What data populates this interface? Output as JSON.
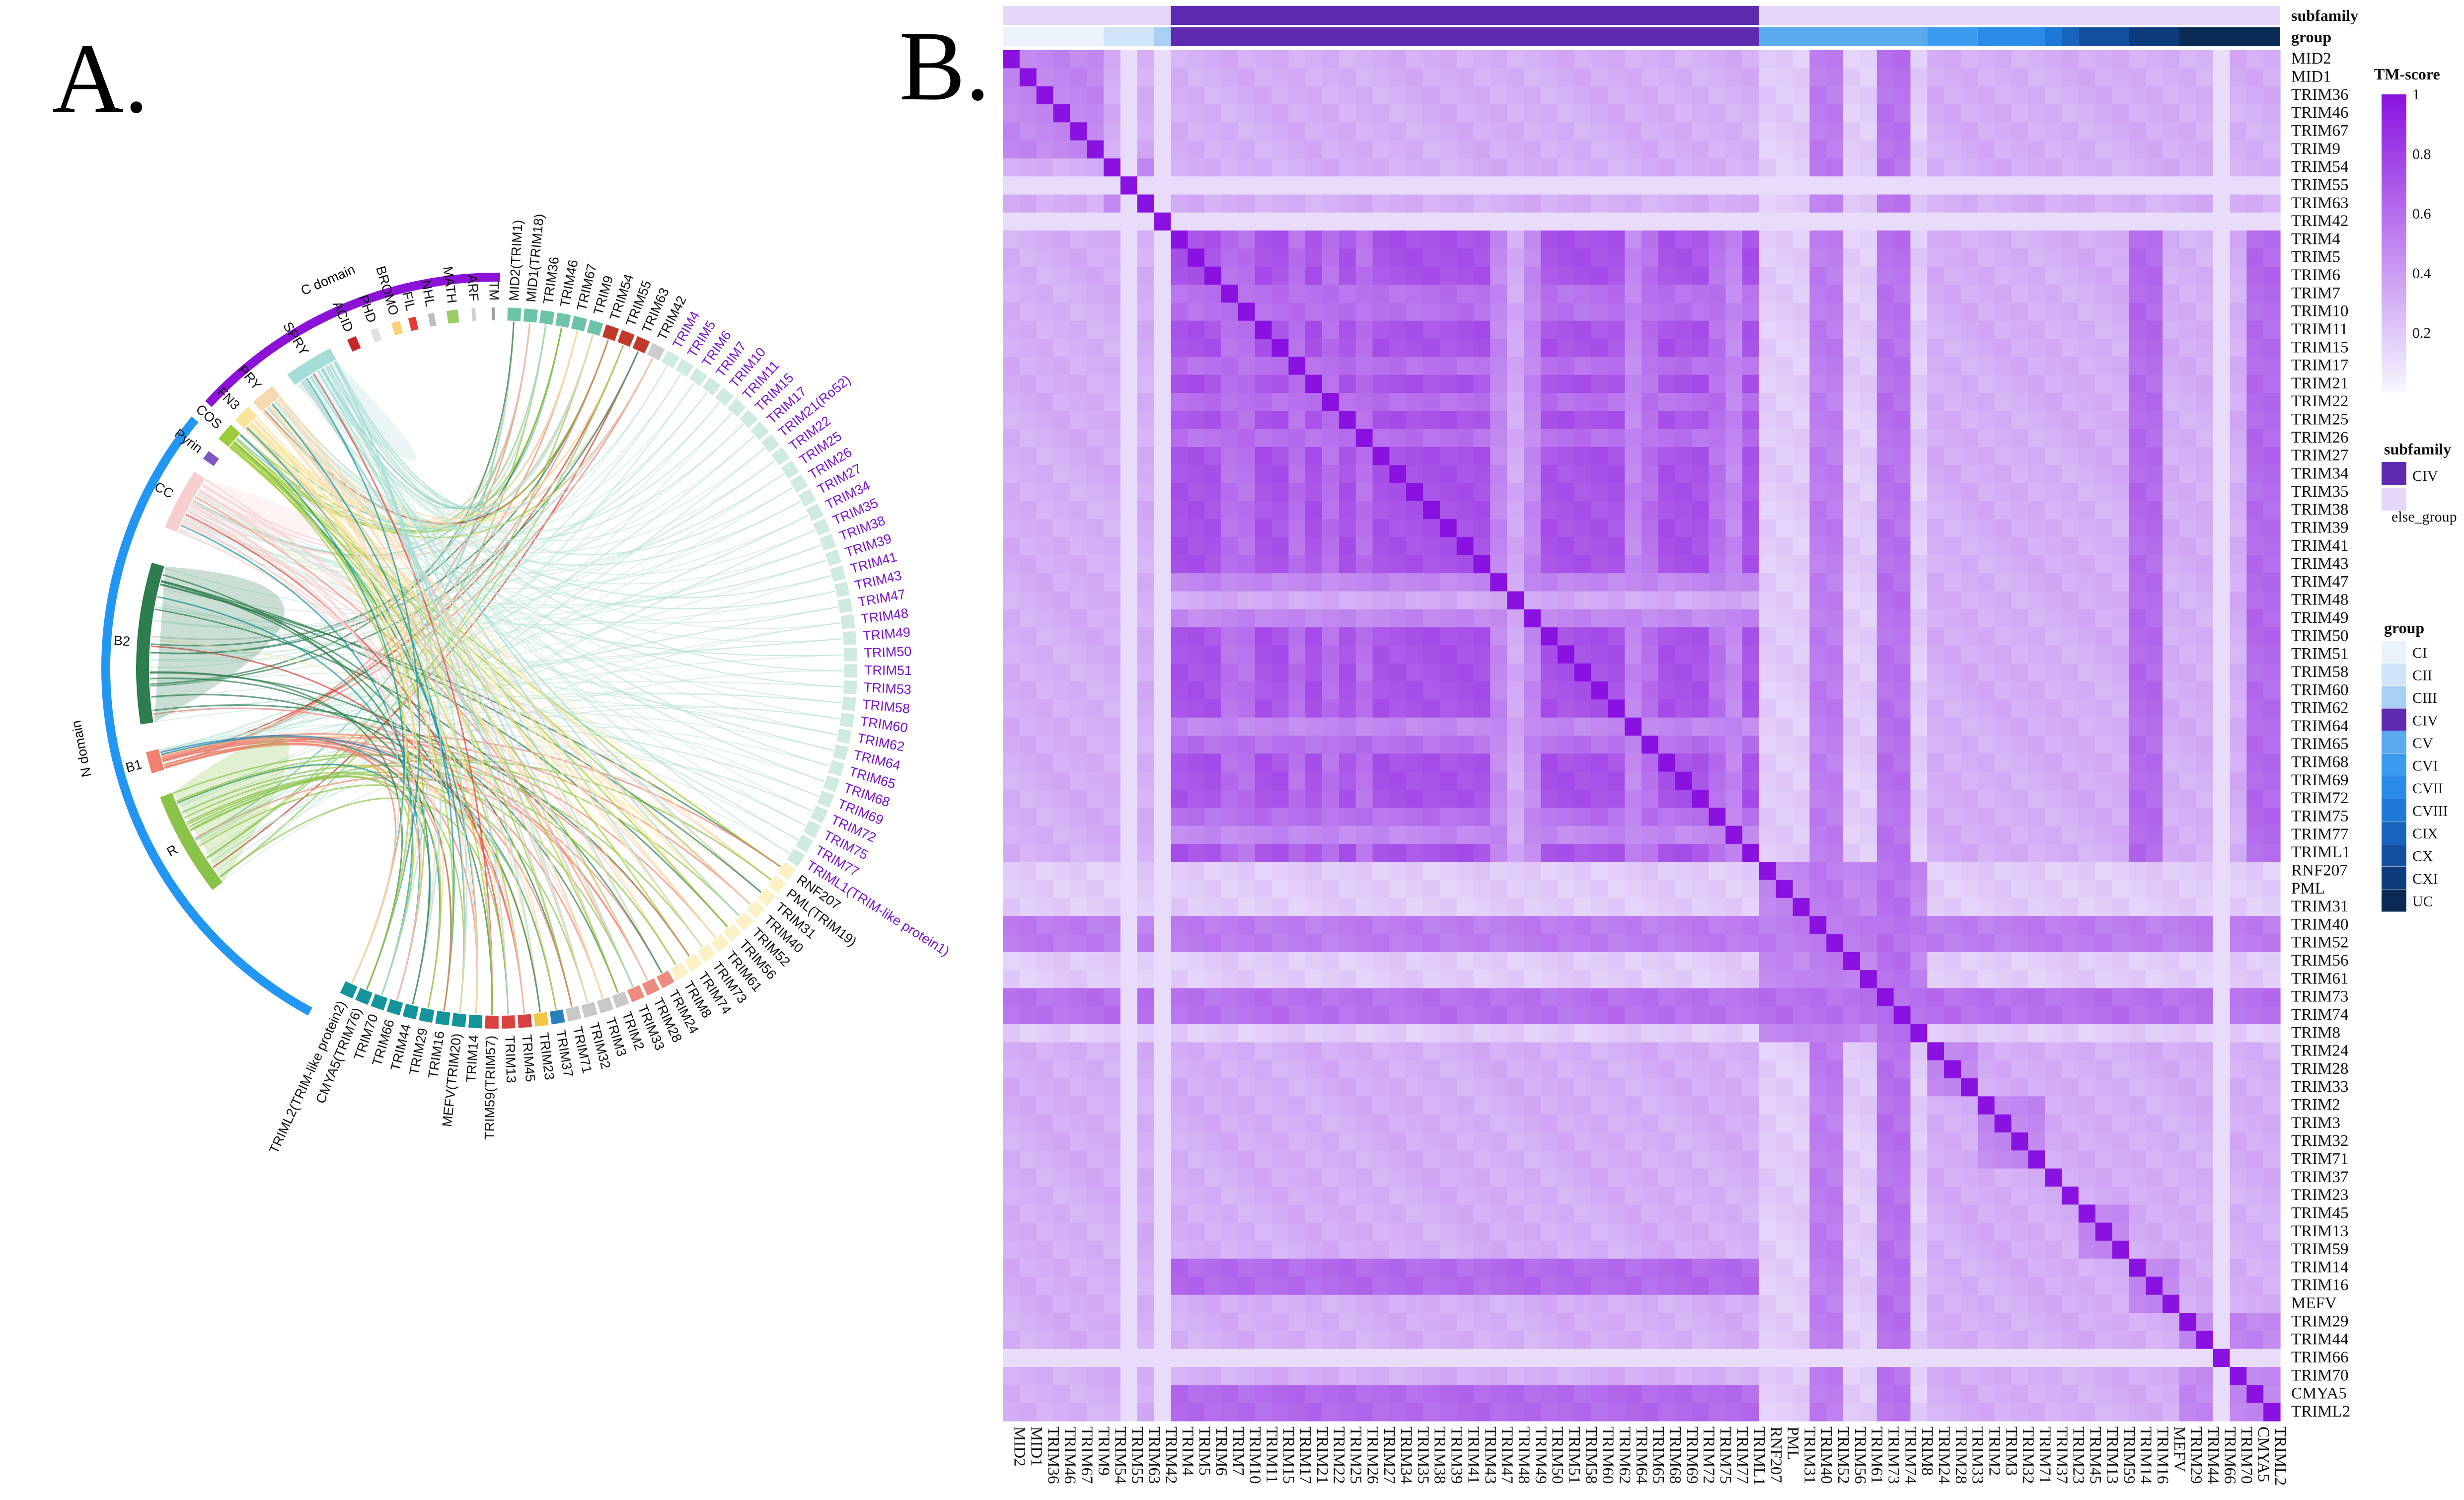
{
  "panels": {
    "a_label": "A.",
    "b_label": "B."
  },
  "chart_data": [
    {
      "type": "chord",
      "title": "",
      "super_groups": [
        {
          "name": "C domain",
          "color": "#8d12d8"
        },
        {
          "name": "N domain",
          "color": "#2196f3"
        }
      ],
      "domains": [
        {
          "name": "TM",
          "color": "#9e9e9e",
          "super": "C domain"
        },
        {
          "name": "ARF",
          "color": "#cfcfcf",
          "super": "C domain"
        },
        {
          "name": "MATH",
          "color": "#9ccc65",
          "super": "C domain"
        },
        {
          "name": "NHL",
          "color": "#bdbdbd",
          "super": "C domain"
        },
        {
          "name": "FIL",
          "color": "#e53935",
          "super": "C domain"
        },
        {
          "name": "BROMO",
          "color": "#f9d27a",
          "super": "C domain"
        },
        {
          "name": "PHD",
          "color": "#e0e0e0",
          "super": "C domain"
        },
        {
          "name": "ACID",
          "color": "#c62828",
          "super": "C domain"
        },
        {
          "name": "SPRY",
          "color": "#a6dcd7",
          "super": "C domain"
        },
        {
          "name": "PRY",
          "color": "#f6d9b0",
          "super": "C domain"
        },
        {
          "name": "FN3",
          "color": "#f7e39a",
          "super": "C domain"
        },
        {
          "name": "COS",
          "color": "#9ccc3a",
          "super": "C domain"
        },
        {
          "name": "Pyrin",
          "color": "#7e57c2",
          "super": "N domain"
        },
        {
          "name": "CC",
          "color": "#f8cfcf",
          "super": "N domain"
        },
        {
          "name": "B2",
          "color": "#2e7d4f",
          "super": "N domain"
        },
        {
          "name": "B1",
          "color": "#f08070",
          "super": "N domain"
        },
        {
          "name": "R",
          "color": "#8bc34a",
          "super": "N domain"
        }
      ],
      "proteins": [
        {
          "name": "MID2(TRIM1)",
          "color": "#6cc3a8",
          "group": "other"
        },
        {
          "name": "MID1(TRIM18)",
          "color": "#6cc3a8",
          "group": "other"
        },
        {
          "name": "TRIM36",
          "color": "#6cc3a8",
          "group": "other"
        },
        {
          "name": "TRIM46",
          "color": "#6cc3a8",
          "group": "other"
        },
        {
          "name": "TRIM67",
          "color": "#6cc3a8",
          "group": "other"
        },
        {
          "name": "TRIM9",
          "color": "#6cc3a8",
          "group": "other"
        },
        {
          "name": "TRIM54",
          "color": "#c0392b",
          "group": "other"
        },
        {
          "name": "TRIM55",
          "color": "#c0392b",
          "group": "other"
        },
        {
          "name": "TRIM63",
          "color": "#c0392b",
          "group": "other"
        },
        {
          "name": "TRIM42",
          "color": "#cccccc",
          "group": "other"
        },
        {
          "name": "TRIM4",
          "color": "#cfeae0",
          "group": "CIV"
        },
        {
          "name": "TRIM5",
          "color": "#cfeae0",
          "group": "CIV"
        },
        {
          "name": "TRIM6",
          "color": "#cfeae0",
          "group": "CIV"
        },
        {
          "name": "TRIM7",
          "color": "#cfeae0",
          "group": "CIV"
        },
        {
          "name": "TRIM10",
          "color": "#cfeae0",
          "group": "CIV"
        },
        {
          "name": "TRIM11",
          "color": "#cfeae0",
          "group": "CIV"
        },
        {
          "name": "TRIM15",
          "color": "#cfeae0",
          "group": "CIV"
        },
        {
          "name": "TRIM17",
          "color": "#cfeae0",
          "group": "CIV"
        },
        {
          "name": "TRIM21(Ro52)",
          "color": "#cfeae0",
          "group": "CIV"
        },
        {
          "name": "TRIM22",
          "color": "#cfeae0",
          "group": "CIV"
        },
        {
          "name": "TRIM25",
          "color": "#cfeae0",
          "group": "CIV"
        },
        {
          "name": "TRIM26",
          "color": "#cfeae0",
          "group": "CIV"
        },
        {
          "name": "TRIM27",
          "color": "#cfeae0",
          "group": "CIV"
        },
        {
          "name": "TRIM34",
          "color": "#cfeae0",
          "group": "CIV"
        },
        {
          "name": "TRIM35",
          "color": "#cfeae0",
          "group": "CIV"
        },
        {
          "name": "TRIM38",
          "color": "#cfeae0",
          "group": "CIV"
        },
        {
          "name": "TRIM39",
          "color": "#cfeae0",
          "group": "CIV"
        },
        {
          "name": "TRIM41",
          "color": "#cfeae0",
          "group": "CIV"
        },
        {
          "name": "TRIM43",
          "color": "#cfeae0",
          "group": "CIV"
        },
        {
          "name": "TRIM47",
          "color": "#cfeae0",
          "group": "CIV"
        },
        {
          "name": "TRIM48",
          "color": "#cfeae0",
          "group": "CIV"
        },
        {
          "name": "TRIM49",
          "color": "#cfeae0",
          "group": "CIV"
        },
        {
          "name": "TRIM50",
          "color": "#cfeae0",
          "group": "CIV"
        },
        {
          "name": "TRIM51",
          "color": "#cfeae0",
          "group": "CIV"
        },
        {
          "name": "TRIM53",
          "color": "#cfeae0",
          "group": "CIV"
        },
        {
          "name": "TRIM58",
          "color": "#cfeae0",
          "group": "CIV"
        },
        {
          "name": "TRIM60",
          "color": "#cfeae0",
          "group": "CIV"
        },
        {
          "name": "TRIM62",
          "color": "#cfeae0",
          "group": "CIV"
        },
        {
          "name": "TRIM64",
          "color": "#cfeae0",
          "group": "CIV"
        },
        {
          "name": "TRIM65",
          "color": "#cfeae0",
          "group": "CIV"
        },
        {
          "name": "TRIM68",
          "color": "#cfeae0",
          "group": "CIV"
        },
        {
          "name": "TRIM69",
          "color": "#cfeae0",
          "group": "CIV"
        },
        {
          "name": "TRIM72",
          "color": "#cfeae0",
          "group": "CIV"
        },
        {
          "name": "TRIM75",
          "color": "#cfeae0",
          "group": "CIV"
        },
        {
          "name": "TRIM77",
          "color": "#cfeae0",
          "group": "CIV"
        },
        {
          "name": "TRIML1(TRIM-like protein1)",
          "color": "#cfeae0",
          "group": "CIV"
        },
        {
          "name": "RNF207",
          "color": "#fbf1c4",
          "group": "other"
        },
        {
          "name": "PML(TRIM19)",
          "color": "#fbf1c4",
          "group": "other"
        },
        {
          "name": "TRIM31",
          "color": "#fbf1c4",
          "group": "other"
        },
        {
          "name": "TRIM40",
          "color": "#fbf1c4",
          "group": "other"
        },
        {
          "name": "TRIM52",
          "color": "#fbf1c4",
          "group": "other"
        },
        {
          "name": "TRIM56",
          "color": "#fbf1c4",
          "group": "other"
        },
        {
          "name": "TRIM61",
          "color": "#fbf1c4",
          "group": "other"
        },
        {
          "name": "TRIM73",
          "color": "#fbf1c4",
          "group": "other"
        },
        {
          "name": "TRIM74",
          "color": "#fbf1c4",
          "group": "other"
        },
        {
          "name": "TRIM8",
          "color": "#fbf1c4",
          "group": "other"
        },
        {
          "name": "TRIM24",
          "color": "#ef8a80",
          "group": "other"
        },
        {
          "name": "TRIM28",
          "color": "#ef8a80",
          "group": "other"
        },
        {
          "name": "TRIM33",
          "color": "#ef8a80",
          "group": "other"
        },
        {
          "name": "TRIM2",
          "color": "#c8c8c8",
          "group": "other"
        },
        {
          "name": "TRIM3",
          "color": "#c8c8c8",
          "group": "other"
        },
        {
          "name": "TRIM32",
          "color": "#c8c8c8",
          "group": "other"
        },
        {
          "name": "TRIM71",
          "color": "#c8c8c8",
          "group": "other"
        },
        {
          "name": "TRIM37",
          "color": "#2a7fbf",
          "group": "other"
        },
        {
          "name": "TRIM23",
          "color": "#f2c744",
          "group": "other"
        },
        {
          "name": "TRIM45",
          "color": "#d94040",
          "group": "other"
        },
        {
          "name": "TRIM13",
          "color": "#d94040",
          "group": "other"
        },
        {
          "name": "TRIM59(TRIM57)",
          "color": "#d94040",
          "group": "other"
        },
        {
          "name": "TRIM14",
          "color": "#13949b",
          "group": "other"
        },
        {
          "name": "MEFV(TRIM20)",
          "color": "#13949b",
          "group": "other"
        },
        {
          "name": "TRIM16",
          "color": "#13949b",
          "group": "other"
        },
        {
          "name": "TRIM29",
          "color": "#13949b",
          "group": "other"
        },
        {
          "name": "TRIM44",
          "color": "#13949b",
          "group": "other"
        },
        {
          "name": "TRIM66",
          "color": "#13949b",
          "group": "other"
        },
        {
          "name": "TRIM70",
          "color": "#13949b",
          "group": "other"
        },
        {
          "name": "CMYA5(TRIM76)",
          "color": "#13949b",
          "group": "other"
        },
        {
          "name": "TRIML2(TRIM-like protein2)",
          "color": "#13949b",
          "group": "other"
        }
      ]
    },
    {
      "type": "heatmap",
      "title": "",
      "value_name": "TM-score",
      "value_range": [
        0,
        1
      ],
      "colorbar_ticks": [
        "1",
        "0.8",
        "0.6",
        "0.4",
        "0.2"
      ],
      "row_labels": [
        "MID2",
        "MID1",
        "TRIM36",
        "TRIM46",
        "TRIM67",
        "TRIM9",
        "TRIM54",
        "TRIM55",
        "TRIM63",
        "TRIM42",
        "TRIM4",
        "TRIM5",
        "TRIM6",
        "TRIM7",
        "TRIM10",
        "TRIM11",
        "TRIM15",
        "TRIM17",
        "TRIM21",
        "TRIM22",
        "TRIM25",
        "TRIM26",
        "TRIM27",
        "TRIM34",
        "TRIM35",
        "TRIM38",
        "TRIM39",
        "TRIM41",
        "TRIM43",
        "TRIM47",
        "TRIM48",
        "TRIM49",
        "TRIM50",
        "TRIM51",
        "TRIM58",
        "TRIM60",
        "TRIM62",
        "TRIM64",
        "TRIM65",
        "TRIM68",
        "TRIM69",
        "TRIM72",
        "TRIM75",
        "TRIM77",
        "TRIML1",
        "RNF207",
        "PML",
        "TRIM31",
        "TRIM40",
        "TRIM52",
        "TRIM56",
        "TRIM61",
        "TRIM73",
        "TRIM74",
        "TRIM8",
        "TRIM24",
        "TRIM28",
        "TRIM33",
        "TRIM2",
        "TRIM3",
        "TRIM32",
        "TRIM71",
        "TRIM37",
        "TRIM23",
        "TRIM45",
        "TRIM13",
        "TRIM59",
        "TRIM14",
        "TRIM16",
        "MEFV",
        "TRIM29",
        "TRIM44",
        "TRIM66",
        "TRIM70",
        "CMYA5",
        "TRIML2"
      ],
      "col_labels": [
        "MID2",
        "MID1",
        "TRIM36",
        "TRIM46",
        "TRIM67",
        "TRIM9",
        "TRIM54",
        "TRIM55",
        "TRIM63",
        "TRIM42",
        "TRIM4",
        "TRIM5",
        "TRIM6",
        "TRIM7",
        "TRIM10",
        "TRIM11",
        "TRIM15",
        "TRIM17",
        "TRIM21",
        "TRIM22",
        "TRIM25",
        "TRIM26",
        "TRIM27",
        "TRIM34",
        "TRIM35",
        "TRIM38",
        "TRIM39",
        "TRIM41",
        "TRIM43",
        "TRIM47",
        "TRIM48",
        "TRIM49",
        "TRIM50",
        "TRIM51",
        "TRIM58",
        "TRIM60",
        "TRIM62",
        "TRIM64",
        "TRIM65",
        "TRIM68",
        "TRIM69",
        "TRIM72",
        "TRIM75",
        "TRIM77",
        "TRIML1",
        "RNF207",
        "PML",
        "TRIM31",
        "TRIM40",
        "TRIM52",
        "TRIM56",
        "TRIM61",
        "TRIM73",
        "TRIM74",
        "TRIM8",
        "TRIM24",
        "TRIM28",
        "TRIM33",
        "TRIM2",
        "TRIM3",
        "TRIM32",
        "TRIM71",
        "TRIM37",
        "TRIM23",
        "TRIM45",
        "TRIM13",
        "TRIM59",
        "TRIM14",
        "TRIM16",
        "MEFV",
        "TRIM29",
        "TRIM44",
        "TRIM66",
        "TRIM70",
        "CMYA5",
        "TRIML2"
      ],
      "low_color": "#f6f7ff",
      "high_color": "#8a12e0",
      "annotation_rows": [
        {
          "name": "subfamily",
          "spans": [
            {
              "label": "else_group",
              "from": "MID2",
              "to": "TRIM42"
            },
            {
              "label": "CIV",
              "from": "TRIM4",
              "to": "TRIML1"
            },
            {
              "label": "else_group",
              "from": "RNF207",
              "to": "TRIML2"
            }
          ]
        },
        {
          "name": "group",
          "spans": [
            {
              "label": "CI",
              "from": "MID2",
              "to": "TRIM9"
            },
            {
              "label": "CII",
              "from": "TRIM54",
              "to": "TRIM63"
            },
            {
              "label": "CIII",
              "from": "TRIM42",
              "to": "TRIM42"
            },
            {
              "label": "CIV",
              "from": "TRIM4",
              "to": "TRIML1"
            },
            {
              "label": "CV",
              "from": "RNF207",
              "to": "TRIM8"
            },
            {
              "label": "CVI",
              "from": "TRIM24",
              "to": "TRIM33"
            },
            {
              "label": "CVII",
              "from": "TRIM2",
              "to": "TRIM71"
            },
            {
              "label": "CVIII",
              "from": "TRIM37",
              "to": "TRIM37"
            },
            {
              "label": "CIX",
              "from": "TRIM23",
              "to": "TRIM23"
            },
            {
              "label": "CX",
              "from": "TRIM45",
              "to": "TRIM59"
            },
            {
              "label": "CXI",
              "from": "TRIM14",
              "to": "MEFV"
            },
            {
              "label": "UC",
              "from": "TRIM29",
              "to": "TRIML2"
            }
          ]
        }
      ],
      "legend": {
        "subfamily_title": "subfamily",
        "subfamily": [
          {
            "label": "CIV",
            "color": "#5e2bb0"
          },
          {
            "label": "else_group",
            "color": "#e6d6f7"
          }
        ],
        "group_title": "group",
        "group": [
          {
            "label": "CI",
            "color": "#eaf3fc"
          },
          {
            "label": "CII",
            "color": "#cfe4f8"
          },
          {
            "label": "CIII",
            "color": "#a8d0f3"
          },
          {
            "label": "CIV",
            "color": "#5e2bb0"
          },
          {
            "label": "CV",
            "color": "#5aaaf0"
          },
          {
            "label": "CVI",
            "color": "#3b9bf0"
          },
          {
            "label": "CVII",
            "color": "#2a8ae8"
          },
          {
            "label": "CVIII",
            "color": "#1e78d6"
          },
          {
            "label": "CIX",
            "color": "#1764bd"
          },
          {
            "label": "CX",
            "color": "#124f9e"
          },
          {
            "label": "CXI",
            "color": "#0d3b7c"
          },
          {
            "label": "UC",
            "color": "#0a2a55"
          }
        ]
      }
    }
  ]
}
